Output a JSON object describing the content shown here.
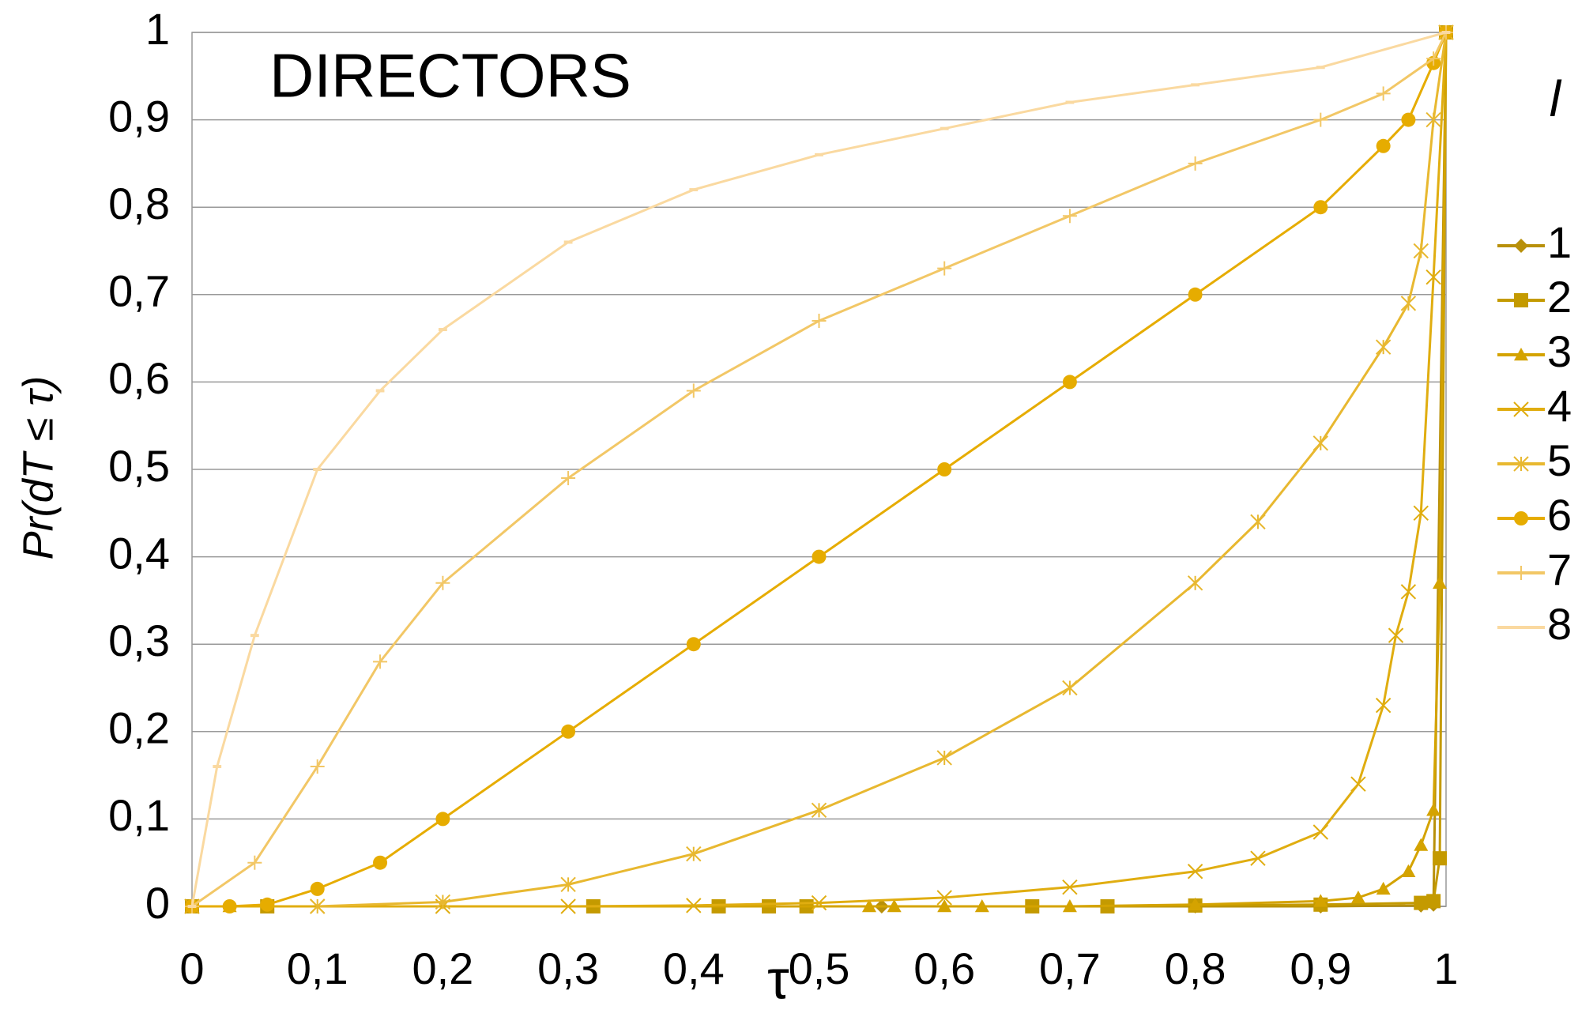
{
  "chart_data": {
    "type": "line",
    "annotation": "DIRECTORS",
    "x_label": "τ",
    "y_label": "Pr(dT ≤ τ)",
    "legend_title": "l",
    "xlim": [
      0,
      1
    ],
    "ylim": [
      0,
      1
    ],
    "xticks": [
      0,
      {
        "value": 0.1,
        "label": "0,1"
      },
      {
        "value": 0.2,
        "label": "0,2"
      },
      {
        "value": 0.3,
        "label": "0,3"
      },
      {
        "value": 0.4,
        "label": "0,4"
      },
      {
        "value": 0.5,
        "label": "0,5"
      },
      {
        "value": 0.6,
        "label": "0,6"
      },
      {
        "value": 0.7,
        "label": "0,7"
      },
      {
        "value": 0.8,
        "label": "0,8"
      },
      {
        "value": 0.9,
        "label": "0,9"
      },
      1
    ],
    "yticks": [
      0,
      {
        "value": 0.1,
        "label": "0,1"
      },
      {
        "value": 0.2,
        "label": "0,2"
      },
      {
        "value": 0.3,
        "label": "0,3"
      },
      {
        "value": 0.4,
        "label": "0,4"
      },
      {
        "value": 0.5,
        "label": "0,5"
      },
      {
        "value": 0.6,
        "label": "0,6"
      },
      {
        "value": 0.7,
        "label": "0,7"
      },
      {
        "value": 0.8,
        "label": "0,8"
      },
      {
        "value": 0.9,
        "label": "0,9"
      },
      1
    ],
    "grid": true,
    "legend": "right",
    "series": [
      {
        "name": "1",
        "color": "#b8900a",
        "marker": "diamond",
        "x": [
          0,
          0.55,
          0.8,
          0.9,
          0.98,
          0.99,
          1
        ],
        "values": [
          0,
          0,
          0,
          0,
          0.001,
          0.002,
          1
        ]
      },
      {
        "name": "2",
        "color": "#c49a00",
        "marker": "square",
        "x": [
          0,
          0.06,
          0.32,
          0.42,
          0.46,
          0.49,
          0.67,
          0.73,
          0.8,
          0.9,
          0.98,
          0.99,
          0.995,
          1
        ],
        "values": [
          0,
          0,
          0,
          0,
          0,
          0,
          0,
          0,
          0.001,
          0.002,
          0.004,
          0.006,
          0.055,
          1
        ]
      },
      {
        "name": "3",
        "color": "#d4a300",
        "marker": "triangle",
        "x": [
          0,
          0.03,
          0.54,
          0.56,
          0.6,
          0.63,
          0.7,
          0.8,
          0.9,
          0.93,
          0.95,
          0.97,
          0.98,
          0.99,
          0.995,
          1
        ],
        "values": [
          0,
          0,
          0,
          0,
          0,
          0,
          0,
          0.002,
          0.006,
          0.01,
          0.02,
          0.04,
          0.07,
          0.11,
          0.37,
          1
        ]
      },
      {
        "name": "4",
        "color": "#e0ad10",
        "marker": "x",
        "x": [
          0,
          0.1,
          0.2,
          0.3,
          0.4,
          0.5,
          0.6,
          0.7,
          0.8,
          0.85,
          0.9,
          0.93,
          0.95,
          0.96,
          0.97,
          0.98,
          0.99,
          1
        ],
        "values": [
          0,
          0,
          0,
          0,
          0.001,
          0.004,
          0.01,
          0.022,
          0.04,
          0.055,
          0.085,
          0.14,
          0.23,
          0.31,
          0.36,
          0.45,
          0.72,
          1
        ]
      },
      {
        "name": "5",
        "color": "#e8b830",
        "marker": "star",
        "x": [
          0.1,
          0.2,
          0.3,
          0.4,
          0.5,
          0.6,
          0.7,
          0.8,
          0.85,
          0.9,
          0.95,
          0.97,
          0.98,
          0.99,
          1
        ],
        "values": [
          0,
          0.005,
          0.025,
          0.06,
          0.11,
          0.17,
          0.25,
          0.37,
          0.44,
          0.53,
          0.64,
          0.69,
          0.75,
          0.9,
          1
        ]
      },
      {
        "name": "6",
        "color": "#e6ac00",
        "marker": "circle",
        "x": [
          0,
          0.03,
          0.06,
          0.1,
          0.15,
          0.2,
          0.3,
          0.4,
          0.5,
          0.6,
          0.7,
          0.8,
          0.9,
          0.95,
          0.97,
          0.99,
          1
        ],
        "values": [
          0,
          0,
          0.002,
          0.02,
          0.05,
          0.1,
          0.2,
          0.3,
          0.4,
          0.5,
          0.6,
          0.7,
          0.8,
          0.87,
          0.9,
          0.965,
          1
        ]
      },
      {
        "name": "7",
        "color": "#f2c766",
        "marker": "plus",
        "x": [
          0,
          0.05,
          0.1,
          0.15,
          0.2,
          0.3,
          0.4,
          0.5,
          0.6,
          0.7,
          0.8,
          0.9,
          0.95,
          0.99,
          1
        ],
        "values": [
          0,
          0.05,
          0.16,
          0.28,
          0.37,
          0.49,
          0.59,
          0.67,
          0.73,
          0.79,
          0.85,
          0.9,
          0.93,
          0.97,
          1
        ]
      },
      {
        "name": "8",
        "color": "#fad9a0",
        "marker": "dash",
        "x": [
          0,
          0.02,
          0.05,
          0.1,
          0.15,
          0.2,
          0.3,
          0.4,
          0.5,
          0.6,
          0.7,
          0.8,
          0.9,
          1
        ],
        "values": [
          0,
          0.16,
          0.31,
          0.5,
          0.59,
          0.66,
          0.76,
          0.82,
          0.86,
          0.89,
          0.92,
          0.94,
          0.96,
          1
        ]
      }
    ]
  }
}
